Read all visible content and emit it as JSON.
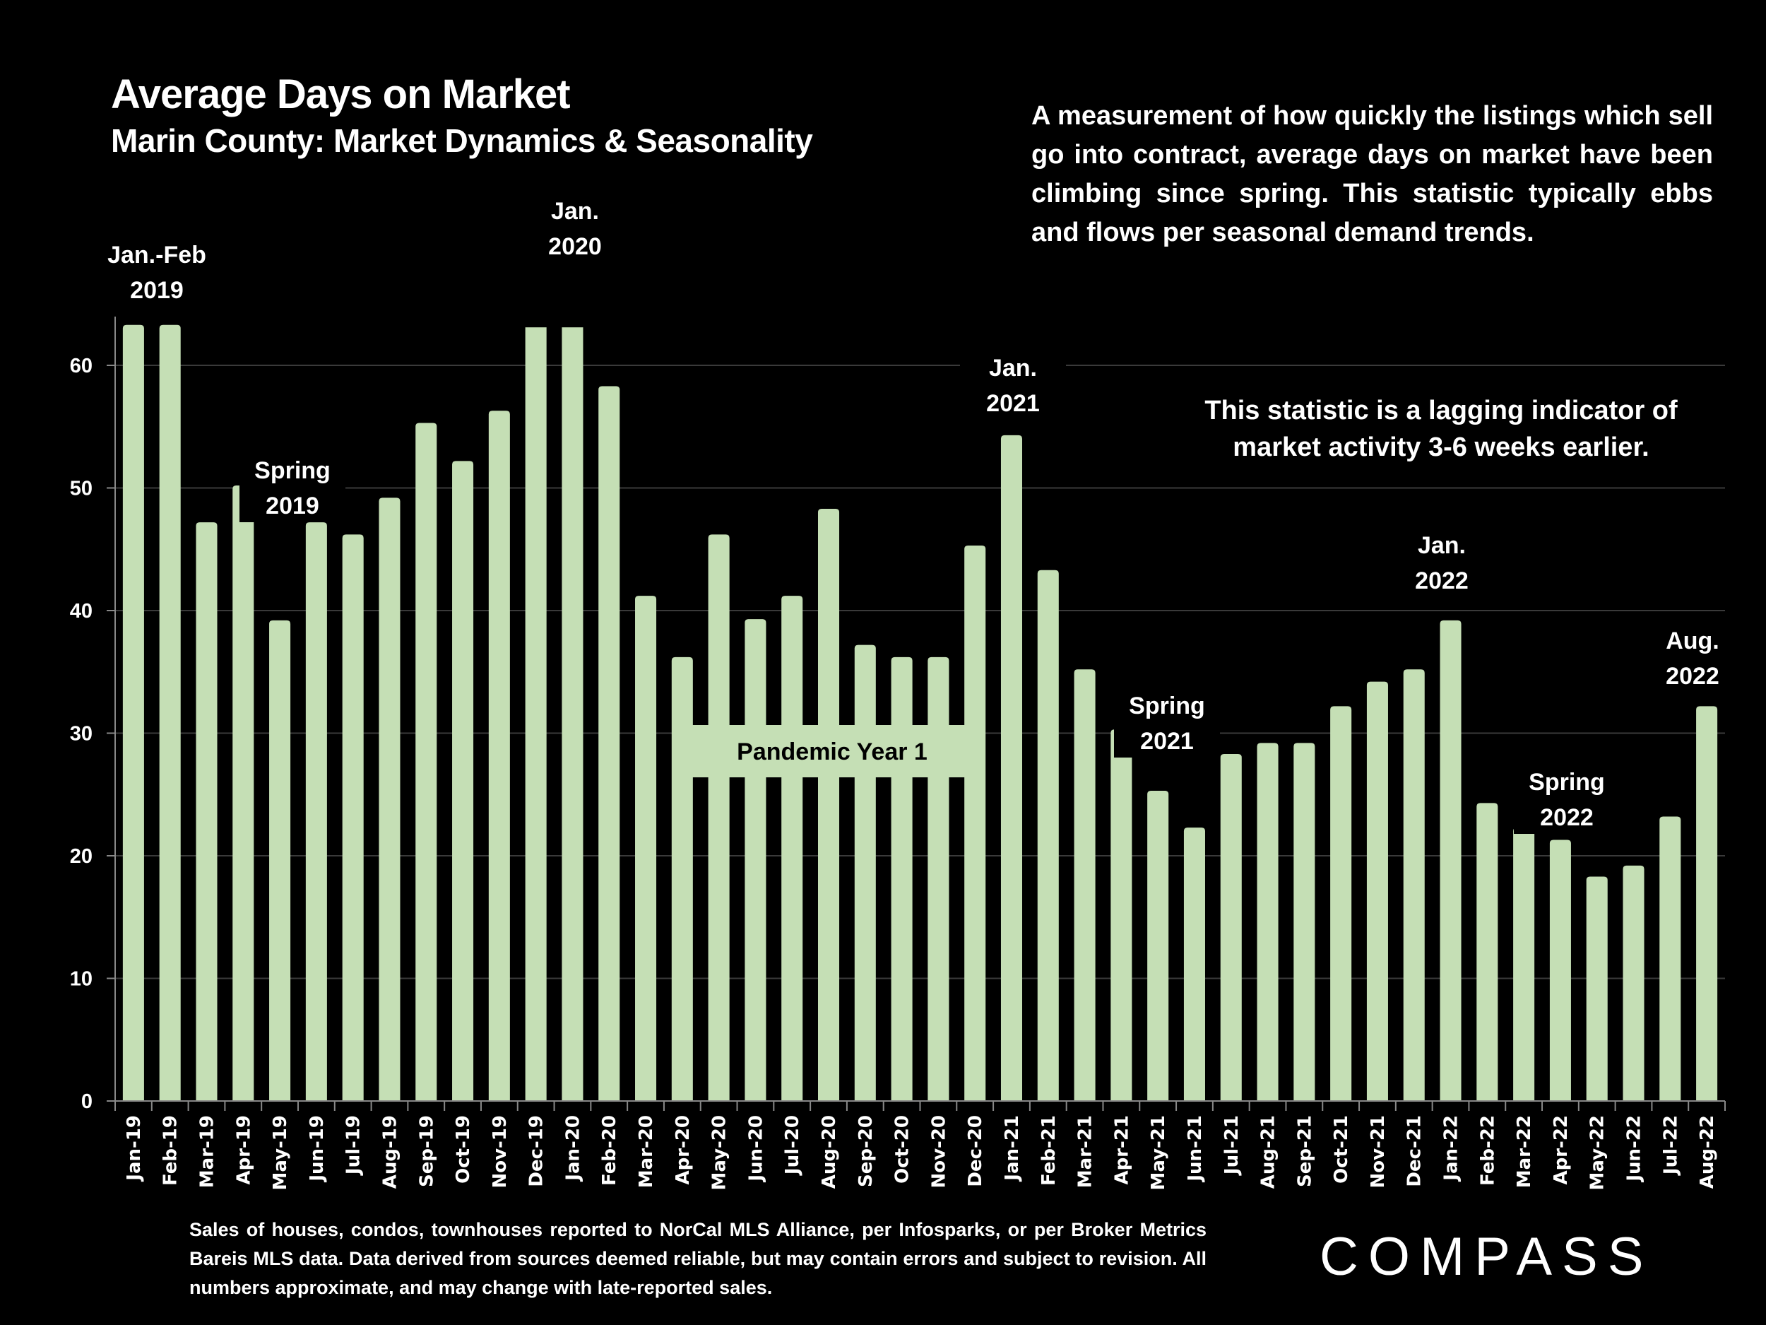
{
  "header": {
    "title": "Average Days on Market",
    "subtitle": "Marin County: Market Dynamics & Seasonality"
  },
  "description": "A measurement of how quickly the listings which sell go into contract, average days on market have been climbing since spring. This statistic typically ebbs and flows per seasonal demand trends.",
  "note": "This statistic is a lagging indicator of market activity 3-6 weeks earlier.",
  "footer": "Sales of houses, condos, townhouses reported to NorCal MLS Alliance, per Infosparks, or per Broker Metrics Bareis MLS data. Data derived from sources deemed reliable, but may contain errors and subject to revision. All numbers approximate, and may change with late-reported sales.",
  "brand": {
    "logo_text": "COMPASS"
  },
  "colors": {
    "bar": "#C5DFB5",
    "background": "#000000",
    "grid": "#3a3a3a",
    "text": "#ffffff"
  },
  "chart_data": {
    "type": "bar",
    "title": "Average Days on Market",
    "subtitle": "Marin County: Market Dynamics & Seasonality",
    "xlabel": "",
    "ylabel": "",
    "ylim": [
      0,
      64
    ],
    "yticks": [
      0,
      10,
      20,
      30,
      40,
      50,
      60
    ],
    "grid": true,
    "legend": "none",
    "categories": [
      "Jan-19",
      "Feb-19",
      "Mar-19",
      "Apr-19",
      "May-19",
      "Jun-19",
      "Jul-19",
      "Aug-19",
      "Sep-19",
      "Oct-19",
      "Nov-19",
      "Dec-19",
      "Jan-20",
      "Feb-20",
      "Mar-20",
      "Apr-20",
      "May-20",
      "Jun-20",
      "Jul-20",
      "Aug-20",
      "Sep-20",
      "Oct-20",
      "Nov-20",
      "Dec-20",
      "Jan-21",
      "Feb-21",
      "Mar-21",
      "Apr-21",
      "May-21",
      "Jun-21",
      "Jul-21",
      "Aug-21",
      "Sep-21",
      "Oct-21",
      "Nov-21",
      "Dec-21",
      "Jan-22",
      "Feb-22",
      "Mar-22",
      "Apr-22",
      "May-22",
      "Jun-22",
      "Jul-22",
      "Aug-22"
    ],
    "series": [
      {
        "name": "Average Days on Market",
        "values": [
          63.3,
          63.3,
          47.2,
          50.2,
          39.2,
          47.2,
          46.2,
          49.2,
          55.3,
          52.2,
          56.3,
          67,
          67,
          58.3,
          41.2,
          36.2,
          46.2,
          39.3,
          41.2,
          48.3,
          37.2,
          36.2,
          36.2,
          45.3,
          54.3,
          43.3,
          35.2,
          30.3,
          25.3,
          22.3,
          28.3,
          29.2,
          29.2,
          32.2,
          34.2,
          35.2,
          39.2,
          24.3,
          22.3,
          21.3,
          18.3,
          19.2,
          23.2,
          32.2
        ]
      }
    ],
    "clipped_above_axis": [
      "Dec-19",
      "Jan-20"
    ],
    "annotations": [
      {
        "lines": [
          "Jan.-Feb",
          "2019"
        ],
        "near": "Jan-19/Feb-19"
      },
      {
        "lines": [
          "Jan.",
          "2020"
        ],
        "near": "Dec-19/Jan-20"
      },
      {
        "lines": [
          "Spring",
          "2019"
        ],
        "near": "May-19"
      },
      {
        "lines": [
          "Jan.",
          "2021"
        ],
        "near": "Jan-21"
      },
      {
        "lines": [
          "Spring",
          "2021"
        ],
        "near": "May-21"
      },
      {
        "lines": [
          "Jan.",
          "2022"
        ],
        "near": "Jan-22"
      },
      {
        "lines": [
          "Spring",
          "2022"
        ],
        "near": "Apr-22"
      },
      {
        "lines": [
          "Aug.",
          "2022"
        ],
        "near": "Aug-22"
      }
    ],
    "band_label": {
      "text": "Pandemic Year 1",
      "span": [
        "Apr-20",
        "Dec-20"
      ]
    }
  }
}
